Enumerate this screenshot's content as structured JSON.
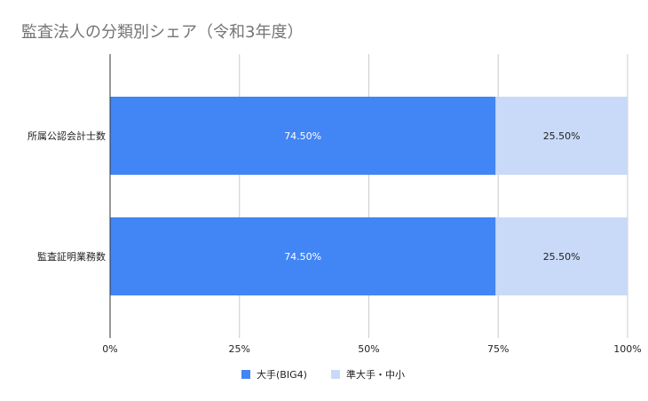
{
  "chart_data": {
    "type": "bar",
    "orientation": "horizontal",
    "stacking": "percent",
    "title": "監査法人の分類別シェア（令和3年度）",
    "categories": [
      "所属公認会計士数",
      "監査証明業務数"
    ],
    "series": [
      {
        "name": "大手(BIG4)",
        "values": [
          74.5,
          74.5
        ],
        "labels": [
          "74.50%",
          "74.50%"
        ],
        "color": "#4285f4",
        "label_color": "#ffffff"
      },
      {
        "name": "準大手・中小",
        "values": [
          25.5,
          25.5
        ],
        "labels": [
          "25.50%",
          "25.50%"
        ],
        "color": "#c9daf8",
        "label_color": "#222222"
      }
    ],
    "xlim": [
      0,
      100
    ],
    "xticks": [
      0,
      25,
      50,
      75,
      100
    ],
    "xtick_labels": [
      "0%",
      "25%",
      "50%",
      "75%",
      "100%"
    ],
    "grid": true,
    "legend_position": "bottom",
    "colors": {
      "grid": "#cccccc",
      "axis": "#333333"
    }
  }
}
